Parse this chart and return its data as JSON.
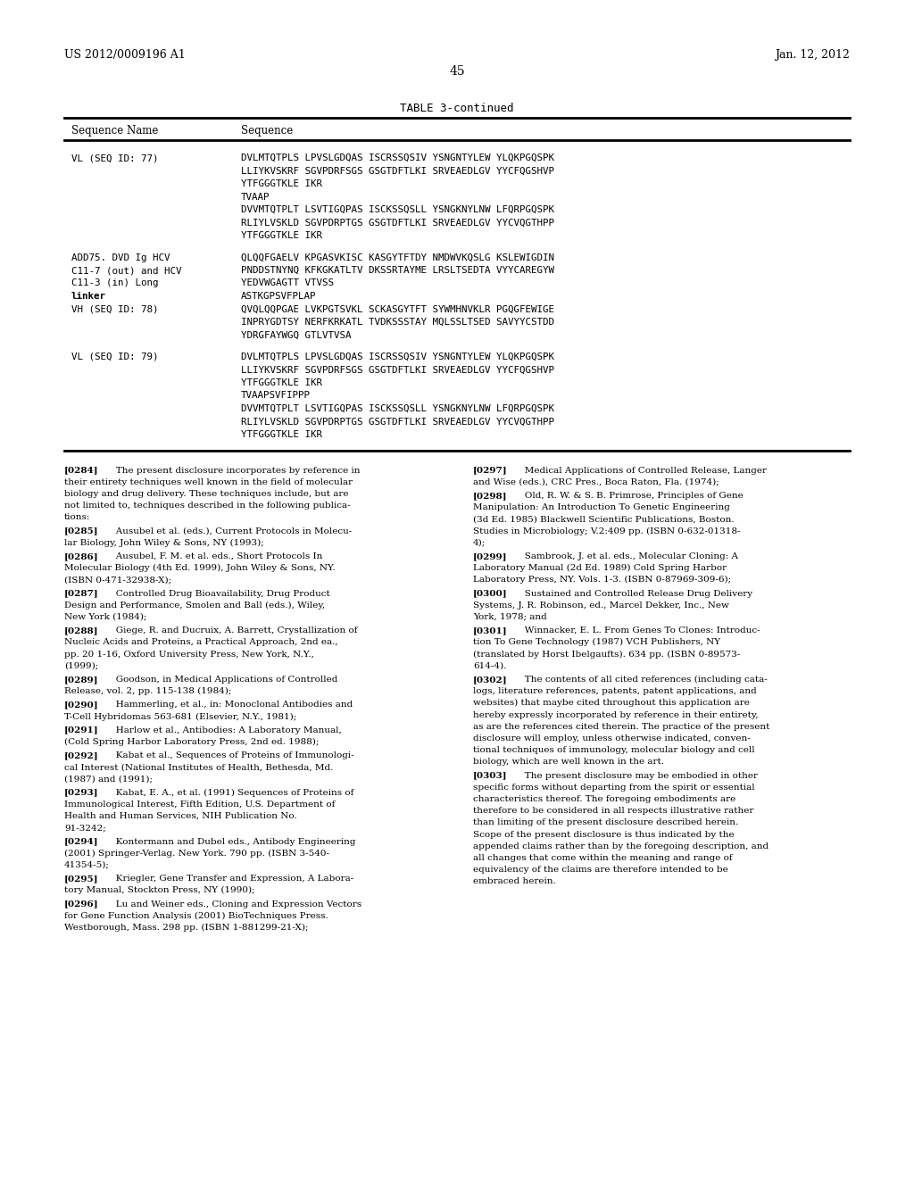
{
  "page_header_left": "US 2012/0009196 A1",
  "page_header_right": "Jan. 12, 2012",
  "page_number": "45",
  "table_title": "TABLE 3-continued",
  "col1_header": "Sequence Name",
  "col2_header": "Sequence",
  "table_rows": [
    {
      "name_lines": [
        "VL (SEQ ID: 77)"
      ],
      "seq_lines": [
        "DVLMTQTPLS LPVSLGDQAS ISCRSSQSIV YSNGNTYLEW YLQKPGQSPK",
        "LLIYKVSKRF SGVPDRFSGS GSGTDFTLKI SRVEAEDLGV YYCFQGSHVP",
        "YTFGGGTKLE IKR",
        "TVAAP",
        "DVVMTQTPLT LSVTIGQPAS ISCKSSQSLL YSNGKNYLNW LFQRPGQSPK",
        "RLIYLVSKLD SGVPDRPTGS GSGTDFTLKI SRVEAEDLGV YYCVQGTHPP",
        "YTFGGGTKLE IKR"
      ]
    },
    {
      "name_lines": [
        "ADD75. DVD Ig HCV",
        "C11-7 (out) and HCV",
        "C11-3 (in) Long",
        "linker",
        "VH (SEQ ID: 78)"
      ],
      "name_bold": [
        false,
        false,
        false,
        true,
        false
      ],
      "seq_lines": [
        "QLQQFGAELV KPGASVKISC KASGYTFTDY NMDWVKQSLG KSLEWIGDIN",
        "PNDDSTNYNQ KFKGKATLTV DKSSRTAYME LRSLTSEDTA VYYCAREGYW",
        "YEDVWGAGTT VTVSS",
        "ASTKGPSVFPLAP",
        "QVQLQQPGAE LVKPGTSVKL SCKASGYTFT SYWMHNVKLR PGQGFEWIGE",
        "INPRYGDTSY NERFKRKATL TVDKSSSTAY MQLSSLTSED SAVYYCSTDD",
        "YDRGFAYWGQ GTLVTVSA"
      ]
    },
    {
      "name_lines": [
        "VL (SEQ ID: 79)"
      ],
      "seq_lines": [
        "DVLMTQTPLS LPVSLGDQAS ISCRSSQSIV YSNGNTYLEW YLQKPGQSPK",
        "LLIYKVSKRF SGVPDRFSGS GSGTDFTLKI SRVEAEDLGV YYCFQGSHVP",
        "YTFGGGTKLE IKR",
        "TVAAPSVFIPPP",
        "DVVMTQTPLT LSVTIGQPAS ISCKSSQSLL YSNGKNYLNW LFQRPGQSPK",
        "RLIYLVSKLD SGVPDRPTGS GSGTDFTLKI SRVEAEDLGV YYCVQGTHPP",
        "YTFGGGTKLE IKR"
      ]
    }
  ],
  "body_left": [
    {
      "ref": "[0284]",
      "lines": [
        "   The present disclosure incorporates by reference in",
        "their entirety techniques well known in the field of molecular",
        "biology and drug delivery. These techniques include, but are",
        "not limited to, techniques described in the following publica-",
        "tions:"
      ]
    },
    {
      "ref": "[0285]",
      "lines": [
        "   Ausubel et al. (eds.), Current Protocols in Molecu-",
        "lar Biology, John Wiley & Sons, NY (1993);"
      ],
      "italic_words": [
        "Current Protocols in Molecu-",
        "lar Biology,"
      ]
    },
    {
      "ref": "[0286]",
      "lines": [
        "   Ausubel, F. M. et al. eds., Short Protocols In",
        "Molecular Biology (4th Ed. 1999), John Wiley & Sons, NY.",
        "(ISBN 0-471-32938-X);"
      ],
      "italic_words": [
        "Short Protocols In",
        "Molecular Biology"
      ]
    },
    {
      "ref": "[0287]",
      "lines": [
        "   Controlled Drug Bioavailability, Drug Product",
        "Design and Performance, Smolen and Ball (eds.), Wiley,",
        "New York (1984);"
      ],
      "italic_words": [
        "Controlled Drug Bioavailability, Drug Product",
        "Design and Performance,"
      ]
    },
    {
      "ref": "[0288]",
      "lines": [
        "   Giege, R. and Ducruix, A. Barrett, Crystallization of",
        "Nucleic Acids and Proteins, a Practical Approach, 2nd ea.,",
        "pp. 20 1-16, Oxford University Press, New York, N.Y.,",
        "(1999);"
      ],
      "italic_words": [
        "Crystallization of",
        "Nucleic Acids and Proteins,"
      ]
    },
    {
      "ref": "[0289]",
      "lines": [
        "   Goodson, in Medical Applications of Controlled",
        "Release, vol. 2, pp. 115-138 (1984);"
      ],
      "italic_words": [
        "Medical Applications of Controlled",
        "Release,"
      ]
    },
    {
      "ref": "[0290]",
      "lines": [
        "   Hammerling, et al., in: Monoclonal Antibodies and",
        "T-Cell Hybridomas 563-681 (Elsevier, N.Y., 1981);"
      ],
      "italic_words": [
        "Antibodies and",
        "T-Cell Hybridomas"
      ]
    },
    {
      "ref": "[0291]",
      "lines": [
        "   Harlow et al., Antibodies: A Laboratory Manual,",
        "(Cold Spring Harbor Laboratory Press, 2nd ed. 1988);"
      ],
      "italic_words": [
        "Antibodies: A Laboratory Manual,"
      ]
    },
    {
      "ref": "[0292]",
      "lines": [
        "   Kabat et al., Sequences of Proteins of Immunologi-",
        "cal Interest (National Institutes of Health, Bethesda, Md.",
        "(1987) and (1991);"
      ],
      "italic_words": [
        "Sequences of Proteins of Immunologi-",
        "cal Interest"
      ]
    },
    {
      "ref": "[0293]",
      "lines": [
        "   Kabat, E. A., et al. (1991) Sequences of Proteins of",
        "Immunological Interest, Fifth Edition, U.S. Department of",
        "Health and Human Services, NIH Publication No.",
        "91-3242;"
      ],
      "italic_words": [
        "Sequences of Proteins of",
        "Immunological Interest,"
      ]
    },
    {
      "ref": "[0294]",
      "lines": [
        "   Kontermann and Dubel eds., Antibody Engineering",
        "(2001) Springer-Verlag. New York. 790 pp. (ISBN 3-540-",
        "41354-5);"
      ],
      "italic_words": [
        "Antibody Engineering"
      ]
    },
    {
      "ref": "[0295]",
      "lines": [
        "   Kriegler, Gene Transfer and Expression, A Labora-",
        "tory Manual, Stockton Press, NY (1990);"
      ]
    },
    {
      "ref": "[0296]",
      "lines": [
        "   Lu and Weiner eds., Cloning and Expression Vectors",
        "for Gene Function Analysis (2001) BioTechniques Press.",
        "Westborough, Mass. 298 pp. (ISBN 1-881299-21-X);"
      ],
      "italic_words": [
        "Cloning and Expression Vectors",
        "for Gene Function Analysis"
      ]
    }
  ],
  "body_right": [
    {
      "ref": "[0297]",
      "lines": [
        "   Medical Applications of Controlled Release, Langer",
        "and Wise (eds.), CRC Pres., Boca Raton, Fla. (1974);"
      ],
      "italic_words": [
        "Medical Applications of Controlled Release,"
      ]
    },
    {
      "ref": "[0298]",
      "lines": [
        "   Old, R. W. & S. B. Primrose, Principles of Gene",
        "Manipulation: An Introduction To Genetic Engineering",
        "(3d Ed. 1985) Blackwell Scientific Publications, Boston.",
        "Studies in Microbiology; V.2:409 pp. (ISBN 0-632-01318-",
        "4);"
      ],
      "italic_words": [
        "Principles of Gene",
        "Manipulation: An Introduction To Genetic Engineering"
      ]
    },
    {
      "ref": "[0299]",
      "lines": [
        "   Sambrook, J. et al. eds., Molecular Cloning: A",
        "Laboratory Manual (2d Ed. 1989) Cold Spring Harbor",
        "Laboratory Press, NY. Vols. 1-3. (ISBN 0-87969-309-6);"
      ],
      "italic_words": [
        "Molecular Cloning: A",
        "Laboratory Manual"
      ]
    },
    {
      "ref": "[0300]",
      "lines": [
        "   Sustained and Controlled Release Drug Delivery",
        "Systems, J. R. Robinson, ed., Marcel Dekker, Inc., New",
        "York, 1978; and"
      ],
      "italic_words": [
        "Sustained and Controlled Release Drug Delivery",
        "Systems,"
      ]
    },
    {
      "ref": "[0301]",
      "lines": [
        "   Winnacker, E. L. From Genes To Clones: Introduc-",
        "tion To Gene Technology (1987) VCH Publishers, NY",
        "(translated by Horst Ibelgaufts). 634 pp. (ISBN 0-89573-",
        "614-4)."
      ],
      "italic_words": [
        "From Genes To Clones: Introduc-",
        "tion To Gene Technology"
      ]
    },
    {
      "ref": "[0302]",
      "lines": [
        "   The contents of all cited references (including cata-",
        "logs, literature references, patents, patent applications, and",
        "websites) that maybe cited throughout this application are",
        "hereby expressly incorporated by reference in their entirety,",
        "as are the references cited therein. The practice of the present",
        "disclosure will employ, unless otherwise indicated, conven-",
        "tional techniques of immunology, molecular biology and cell",
        "biology, which are well known in the art."
      ]
    },
    {
      "ref": "[0303]",
      "lines": [
        "   The present disclosure may be embodied in other",
        "specific forms without departing from the spirit or essential",
        "characteristics thereof. The foregoing embodiments are",
        "therefore to be considered in all respects illustrative rather",
        "than limiting of the present disclosure described herein.",
        "Scope of the present disclosure is thus indicated by the",
        "appended claims rather than by the foregoing description, and",
        "all changes that come within the meaning and range of",
        "equivalency of the claims are therefore intended to be",
        "embraced herein."
      ]
    }
  ],
  "bg_color": "#ffffff"
}
